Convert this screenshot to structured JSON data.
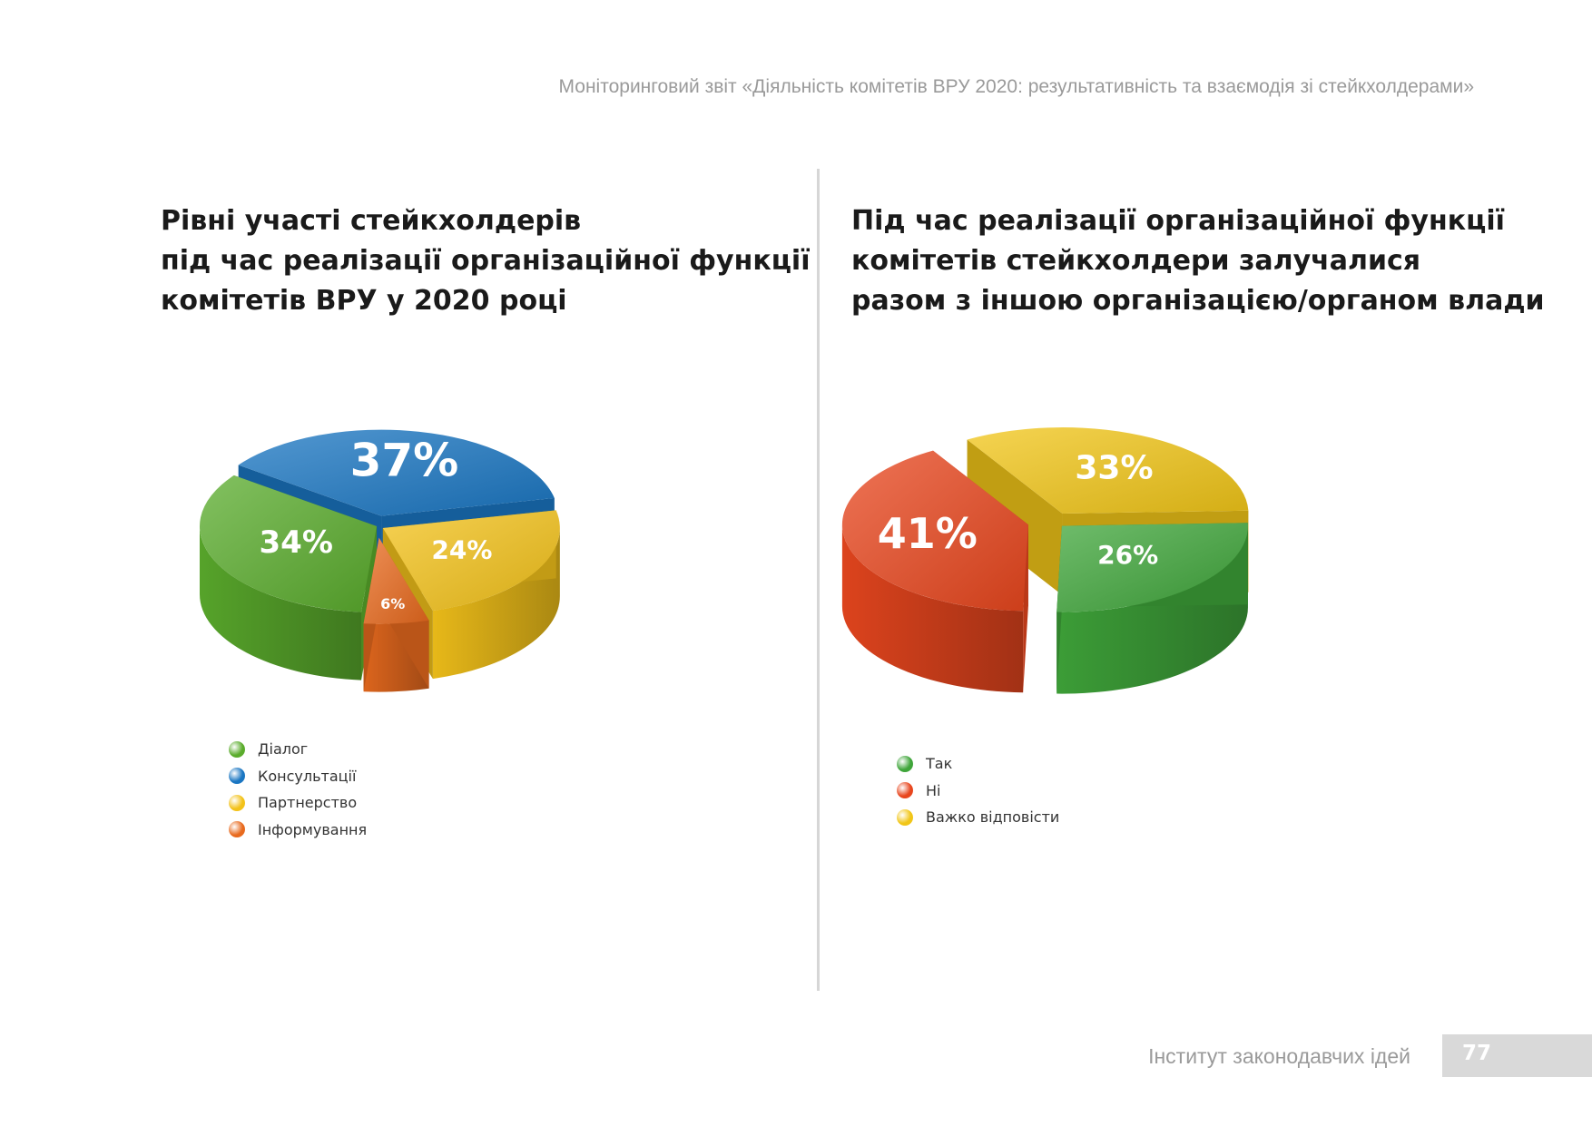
{
  "header": {
    "running_title": "Моніторинговий звіт «Діяльність комітетів ВРУ 2020: результативність та взаємодія зі стейкхолдерами»"
  },
  "footer": {
    "institution": "Інститут законодавчих ідей",
    "page_number": "77"
  },
  "chart_data": [
    {
      "type": "pie",
      "title_lines": [
        "Рівні участі стейкхолдерів",
        "під час реалізації організаційної функції",
        "комітетів ВРУ у 2020 році"
      ],
      "slices": [
        {
          "label": "Діалог",
          "value": 34,
          "display": "34%",
          "color": "#5aac2c"
        },
        {
          "label": "Консультації",
          "value": 37,
          "display": "37%",
          "color": "#1a76c2"
        },
        {
          "label": "Партнерство",
          "value": 24,
          "display": "24%",
          "color": "#f3c21a"
        },
        {
          "label": "Інформування",
          "value": 6,
          "display": "6%",
          "color": "#e86a1e"
        }
      ]
    },
    {
      "type": "pie",
      "title_lines": [
        "Під час реалізації організаційної функції",
        "комітетів  стейкхолдери залучалися",
        "разом з іншою організацією/органом влади"
      ],
      "slices": [
        {
          "label": "Так",
          "value": 26,
          "display": "26%",
          "color": "#3fa53a"
        },
        {
          "label": "Ні",
          "value": 41,
          "display": "41%",
          "color": "#e8461e"
        },
        {
          "label": "Важко відповісти",
          "value": 33,
          "display": "33%",
          "color": "#f1c618"
        }
      ]
    }
  ]
}
